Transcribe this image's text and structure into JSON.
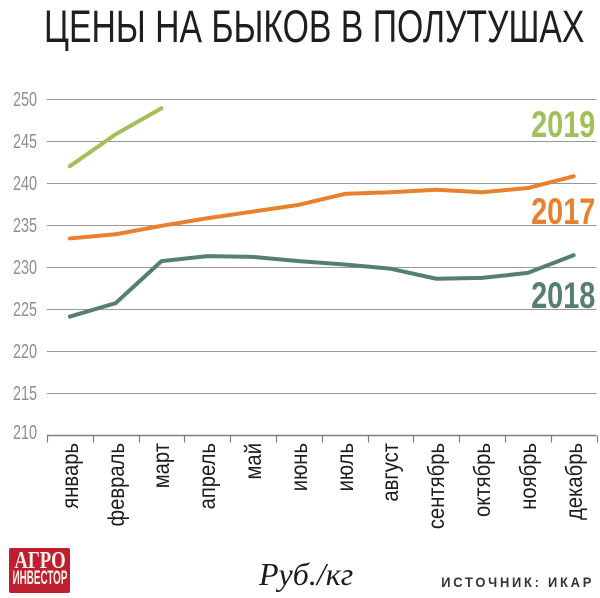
{
  "title": "ЦЕНЫ НА БЫКОВ В ПОЛУТУШАХ",
  "chart_data": {
    "type": "line",
    "title": "ЦЕНЫ НА БЫКОВ В ПОЛУТУШАХ",
    "xlabel": "",
    "ylabel": "Руб./кг",
    "ylim": [
      210,
      250
    ],
    "ytick_step": 5,
    "grid": true,
    "legend_position": "right-of-line-ends",
    "categories": [
      "январь",
      "февраль",
      "март",
      "апрель",
      "май",
      "июнь",
      "июль",
      "август",
      "сентябрь",
      "октябрь",
      "ноябрь",
      "декабрь"
    ],
    "series": [
      {
        "name": "2019",
        "color": "#a2c05a",
        "values": [
          242.0,
          245.8,
          248.9
        ],
        "label_top": 105.5
      },
      {
        "name": "2017",
        "color": "#e8802e",
        "values": [
          233.4,
          233.9,
          234.9,
          235.8,
          236.6,
          237.4,
          238.7,
          238.9,
          239.2,
          238.9,
          239.4,
          240.8
        ],
        "label_top": 192.5
      },
      {
        "name": "2018",
        "color": "#557f72",
        "values": [
          224.1,
          225.7,
          230.7,
          231.3,
          231.2,
          230.7,
          230.3,
          229.8,
          228.6,
          228.7,
          229.3,
          231.4
        ],
        "label_top": 276.5
      }
    ]
  },
  "footer": {
    "logo_line1": "АГРО",
    "logo_line2": "ИНВЕСТОР",
    "units": "Руб./кг",
    "source": "ИСТОЧНИК: ИКАР"
  },
  "colors": {
    "background": "#ffffff",
    "title": "#1e1e1e",
    "gridline": "#999999",
    "axis": "#7d7d7d",
    "y_labels": "#8e8e8e",
    "month_labels": "#1d1d1d",
    "logo_background": "#be1e2d",
    "logo_text": "#f8f1ec",
    "source_text": "#333333"
  }
}
